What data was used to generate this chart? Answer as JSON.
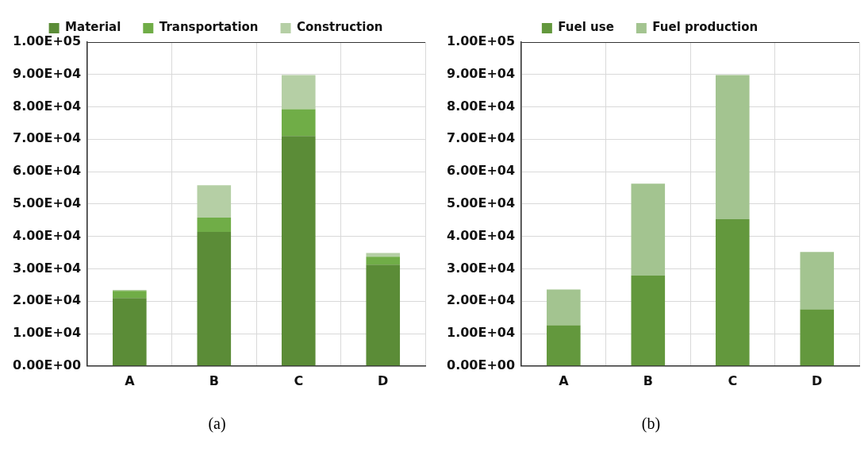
{
  "chart_data": [
    {
      "type": "bar",
      "stacked": true,
      "categories": [
        "A",
        "B",
        "C",
        "D"
      ],
      "ylim": [
        0,
        100000
      ],
      "yticks": [
        {
          "value": 0,
          "label": "0.00E+00"
        },
        {
          "value": 10000,
          "label": "1.00E+04"
        },
        {
          "value": 20000,
          "label": "2.00E+04"
        },
        {
          "value": 30000,
          "label": "3.00E+04"
        },
        {
          "value": 40000,
          "label": "4.00E+04"
        },
        {
          "value": 50000,
          "label": "5.00E+04"
        },
        {
          "value": 60000,
          "label": "6.00E+04"
        },
        {
          "value": 70000,
          "label": "7.00E+04"
        },
        {
          "value": 80000,
          "label": "8.00E+04"
        },
        {
          "value": 90000,
          "label": "9.00E+04"
        },
        {
          "value": 100000,
          "label": "1.00E+05"
        }
      ],
      "grid": true,
      "legend": "top",
      "annotations": [
        "(a)"
      ],
      "series": [
        {
          "name": "Material",
          "color": "#5b8c37",
          "values": [
            21000,
            41400,
            71000,
            31300
          ]
        },
        {
          "name": "Transportation",
          "color": "#70ad47",
          "values": [
            2200,
            4400,
            8300,
            2400
          ]
        },
        {
          "name": "Construction",
          "color": "#b5cfa5",
          "values": [
            300,
            10000,
            10500,
            1200
          ]
        }
      ]
    },
    {
      "type": "bar",
      "stacked": true,
      "categories": [
        "A",
        "B",
        "C",
        "D"
      ],
      "ylim": [
        0,
        100000
      ],
      "yticks": [
        {
          "value": 0,
          "label": "0.00E+00"
        },
        {
          "value": 10000,
          "label": "1.00E+04"
        },
        {
          "value": 20000,
          "label": "2.00E+04"
        },
        {
          "value": 30000,
          "label": "3.00E+04"
        },
        {
          "value": 40000,
          "label": "4.00E+04"
        },
        {
          "value": 50000,
          "label": "5.00E+04"
        },
        {
          "value": 60000,
          "label": "6.00E+04"
        },
        {
          "value": 70000,
          "label": "7.00E+04"
        },
        {
          "value": 80000,
          "label": "8.00E+04"
        },
        {
          "value": 90000,
          "label": "9.00E+04"
        },
        {
          "value": 100000,
          "label": "1.00E+05"
        }
      ],
      "grid": true,
      "legend": "top",
      "annotations": [
        "(b)"
      ],
      "series": [
        {
          "name": "Fuel use",
          "color": "#63983d",
          "values": [
            12600,
            27900,
            45300,
            17500
          ]
        },
        {
          "name": "Fuel production",
          "color": "#a3c490",
          "values": [
            11000,
            28400,
            44500,
            17700
          ]
        }
      ]
    }
  ]
}
